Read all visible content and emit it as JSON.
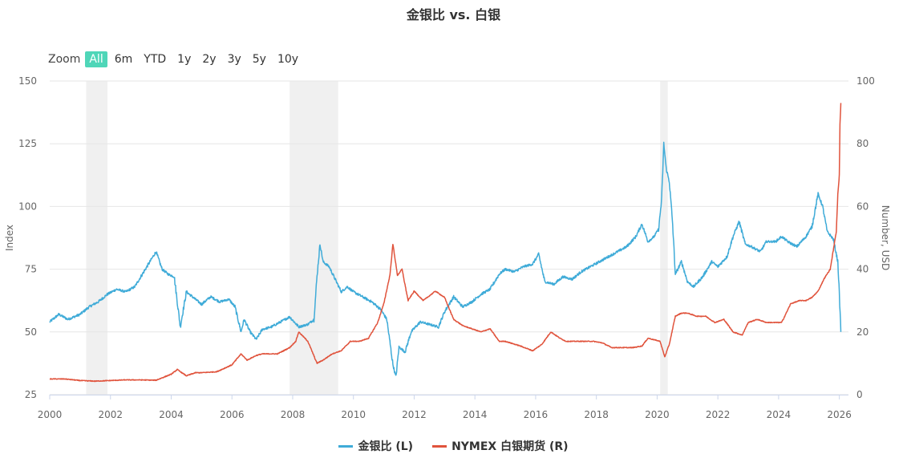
{
  "colors": {
    "gold_silver_ratio": "#3fabd8",
    "silver": "#e0533c",
    "recession": "#f0f0f0",
    "zoom_active": "#4fd6b8"
  },
  "zoom": {
    "label": "Zoom",
    "options": [
      "All",
      "6m",
      "YTD",
      "1y",
      "2y",
      "3y",
      "5y",
      "10y"
    ],
    "active": "All"
  },
  "chart_data": {
    "type": "line",
    "title": "金银比 vs. 白银",
    "xlabel": "",
    "ylabel_left": "Index",
    "ylabel_right": "Number, USD",
    "xlim": [
      2000,
      2026.3
    ],
    "ylim_left": [
      25,
      150
    ],
    "ylim_right": [
      0,
      100
    ],
    "x_ticks": [
      "2000",
      "2002",
      "2004",
      "2006",
      "2008",
      "2010",
      "2012",
      "2014",
      "2016",
      "2018",
      "2020",
      "2022",
      "2024",
      "2026"
    ],
    "y_ticks_left": [
      25,
      50,
      75,
      100,
      125,
      150
    ],
    "y_ticks_right": [
      0,
      20,
      40,
      60,
      80,
      100
    ],
    "recessions": [
      [
        2001.2,
        2001.9
      ],
      [
        2007.9,
        2009.5
      ],
      [
        2020.1,
        2020.35
      ]
    ],
    "series": [
      {
        "name": "金银比 (L)",
        "axis": "left",
        "points": [
          [
            2000.0,
            54
          ],
          [
            2000.3,
            57
          ],
          [
            2000.6,
            55
          ],
          [
            2001.0,
            57
          ],
          [
            2001.3,
            60
          ],
          [
            2001.6,
            62
          ],
          [
            2001.9,
            65
          ],
          [
            2002.2,
            67
          ],
          [
            2002.5,
            66
          ],
          [
            2002.8,
            68
          ],
          [
            2003.0,
            72
          ],
          [
            2003.3,
            78
          ],
          [
            2003.5,
            82
          ],
          [
            2003.7,
            75
          ],
          [
            2003.9,
            73
          ],
          [
            2004.1,
            72
          ],
          [
            2004.3,
            52
          ],
          [
            2004.5,
            66
          ],
          [
            2004.8,
            63
          ],
          [
            2005.0,
            61
          ],
          [
            2005.3,
            64
          ],
          [
            2005.6,
            62
          ],
          [
            2005.9,
            63
          ],
          [
            2006.1,
            60
          ],
          [
            2006.3,
            50
          ],
          [
            2006.4,
            55
          ],
          [
            2006.6,
            50
          ],
          [
            2006.8,
            47
          ],
          [
            2007.0,
            51
          ],
          [
            2007.3,
            52
          ],
          [
            2007.6,
            54
          ],
          [
            2007.9,
            56
          ],
          [
            2008.2,
            52
          ],
          [
            2008.5,
            53
          ],
          [
            2008.7,
            55
          ],
          [
            2008.8,
            72
          ],
          [
            2008.9,
            85
          ],
          [
            2009.0,
            78
          ],
          [
            2009.2,
            76
          ],
          [
            2009.4,
            71
          ],
          [
            2009.6,
            66
          ],
          [
            2009.8,
            68
          ],
          [
            2010.0,
            66
          ],
          [
            2010.3,
            64
          ],
          [
            2010.6,
            62
          ],
          [
            2010.9,
            59
          ],
          [
            2011.1,
            55
          ],
          [
            2011.3,
            37
          ],
          [
            2011.4,
            32
          ],
          [
            2011.5,
            44
          ],
          [
            2011.7,
            42
          ],
          [
            2011.9,
            50
          ],
          [
            2012.2,
            54
          ],
          [
            2012.5,
            53
          ],
          [
            2012.8,
            52
          ],
          [
            2013.0,
            58
          ],
          [
            2013.3,
            64
          ],
          [
            2013.6,
            60
          ],
          [
            2013.9,
            62
          ],
          [
            2014.2,
            65
          ],
          [
            2014.5,
            67
          ],
          [
            2014.8,
            73
          ],
          [
            2015.0,
            75
          ],
          [
            2015.3,
            74
          ],
          [
            2015.6,
            76
          ],
          [
            2015.9,
            77
          ],
          [
            2016.1,
            81
          ],
          [
            2016.3,
            70
          ],
          [
            2016.6,
            69
          ],
          [
            2016.9,
            72
          ],
          [
            2017.2,
            71
          ],
          [
            2017.5,
            74
          ],
          [
            2017.8,
            76
          ],
          [
            2018.1,
            78
          ],
          [
            2018.4,
            80
          ],
          [
            2018.7,
            82
          ],
          [
            2019.0,
            84
          ],
          [
            2019.3,
            88
          ],
          [
            2019.5,
            93
          ],
          [
            2019.7,
            86
          ],
          [
            2019.9,
            88
          ],
          [
            2020.05,
            91
          ],
          [
            2020.15,
            103
          ],
          [
            2020.22,
            125
          ],
          [
            2020.3,
            115
          ],
          [
            2020.4,
            110
          ],
          [
            2020.5,
            95
          ],
          [
            2020.6,
            73
          ],
          [
            2020.8,
            78
          ],
          [
            2021.0,
            70
          ],
          [
            2021.2,
            68
          ],
          [
            2021.5,
            72
          ],
          [
            2021.8,
            78
          ],
          [
            2022.0,
            76
          ],
          [
            2022.3,
            80
          ],
          [
            2022.5,
            88
          ],
          [
            2022.7,
            94
          ],
          [
            2022.9,
            85
          ],
          [
            2023.1,
            84
          ],
          [
            2023.4,
            82
          ],
          [
            2023.6,
            86
          ],
          [
            2023.9,
            86
          ],
          [
            2024.1,
            88
          ],
          [
            2024.3,
            86
          ],
          [
            2024.6,
            84
          ],
          [
            2024.9,
            88
          ],
          [
            2025.1,
            92
          ],
          [
            2025.3,
            105
          ],
          [
            2025.45,
            100
          ],
          [
            2025.6,
            90
          ],
          [
            2025.8,
            87
          ],
          [
            2025.95,
            78
          ],
          [
            2026.0,
            65
          ],
          [
            2026.05,
            50
          ]
        ]
      },
      {
        "name": "NYMEX 白银期货 (R)",
        "axis": "right",
        "points": [
          [
            2000.0,
            5
          ],
          [
            2000.5,
            5
          ],
          [
            2001.0,
            4.5
          ],
          [
            2001.5,
            4.3
          ],
          [
            2002.0,
            4.5
          ],
          [
            2002.5,
            4.7
          ],
          [
            2003.0,
            4.7
          ],
          [
            2003.5,
            4.6
          ],
          [
            2004.0,
            6.5
          ],
          [
            2004.2,
            8
          ],
          [
            2004.5,
            6
          ],
          [
            2004.8,
            7
          ],
          [
            2005.0,
            7
          ],
          [
            2005.5,
            7.3
          ],
          [
            2006.0,
            9.5
          ],
          [
            2006.3,
            13
          ],
          [
            2006.5,
            11
          ],
          [
            2006.8,
            12.5
          ],
          [
            2007.0,
            13
          ],
          [
            2007.5,
            13
          ],
          [
            2007.9,
            15
          ],
          [
            2008.1,
            17
          ],
          [
            2008.2,
            20
          ],
          [
            2008.5,
            17
          ],
          [
            2008.8,
            10
          ],
          [
            2009.0,
            11
          ],
          [
            2009.3,
            13
          ],
          [
            2009.6,
            14
          ],
          [
            2009.9,
            17
          ],
          [
            2010.2,
            17
          ],
          [
            2010.5,
            18
          ],
          [
            2010.8,
            23
          ],
          [
            2011.0,
            29
          ],
          [
            2011.2,
            38
          ],
          [
            2011.3,
            48
          ],
          [
            2011.45,
            38
          ],
          [
            2011.6,
            40
          ],
          [
            2011.8,
            30
          ],
          [
            2012.0,
            33
          ],
          [
            2012.3,
            30
          ],
          [
            2012.7,
            33
          ],
          [
            2013.0,
            31
          ],
          [
            2013.3,
            24
          ],
          [
            2013.6,
            22
          ],
          [
            2013.9,
            21
          ],
          [
            2014.2,
            20
          ],
          [
            2014.5,
            21
          ],
          [
            2014.8,
            17
          ],
          [
            2015.0,
            17
          ],
          [
            2015.5,
            15.5
          ],
          [
            2015.9,
            14
          ],
          [
            2016.2,
            16
          ],
          [
            2016.5,
            20
          ],
          [
            2016.8,
            18
          ],
          [
            2017.0,
            17
          ],
          [
            2017.5,
            17
          ],
          [
            2017.9,
            17
          ],
          [
            2018.2,
            16.5
          ],
          [
            2018.5,
            15
          ],
          [
            2018.9,
            15
          ],
          [
            2019.2,
            15
          ],
          [
            2019.5,
            15.5
          ],
          [
            2019.7,
            18
          ],
          [
            2019.9,
            17.5
          ],
          [
            2020.1,
            17
          ],
          [
            2020.25,
            12
          ],
          [
            2020.4,
            16
          ],
          [
            2020.6,
            25
          ],
          [
            2020.8,
            26
          ],
          [
            2021.0,
            26
          ],
          [
            2021.3,
            25
          ],
          [
            2021.6,
            25
          ],
          [
            2021.9,
            23
          ],
          [
            2022.2,
            24
          ],
          [
            2022.5,
            20
          ],
          [
            2022.8,
            19
          ],
          [
            2023.0,
            23
          ],
          [
            2023.3,
            24
          ],
          [
            2023.6,
            23
          ],
          [
            2023.9,
            23
          ],
          [
            2024.1,
            23
          ],
          [
            2024.4,
            29
          ],
          [
            2024.7,
            30
          ],
          [
            2024.9,
            30
          ],
          [
            2025.1,
            31
          ],
          [
            2025.3,
            33
          ],
          [
            2025.5,
            37
          ],
          [
            2025.7,
            40
          ],
          [
            2025.8,
            46
          ],
          [
            2025.9,
            52
          ],
          [
            2025.95,
            64
          ],
          [
            2026.0,
            70
          ],
          [
            2026.02,
            86
          ],
          [
            2026.05,
            93
          ]
        ]
      }
    ]
  }
}
